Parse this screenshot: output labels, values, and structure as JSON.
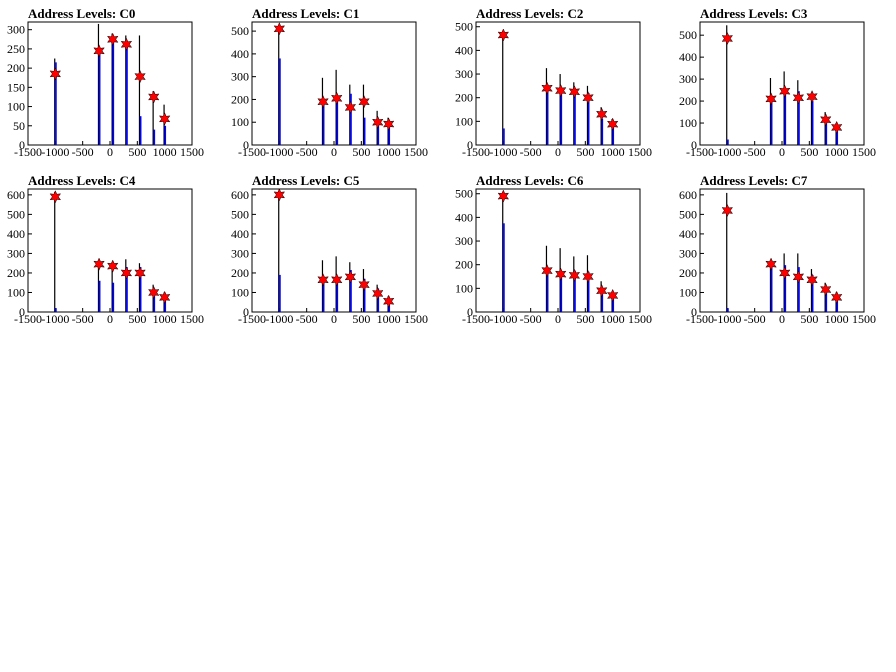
{
  "page": {
    "background": "#ffffff"
  },
  "style": {
    "hist_colors": [
      "#000000",
      "#0000ff"
    ],
    "marker_color": "#ff0000",
    "marker_outline": "#000000",
    "marker_icon": "star-marker-icon"
  },
  "chart_data": [
    {
      "type": "bar",
      "title": "Address Levels: C0",
      "xlim": [
        -1500,
        1500
      ],
      "ylim": [
        0,
        320
      ],
      "yticks": [
        0,
        50,
        100,
        150,
        200,
        250,
        300
      ],
      "xticks": [
        -1500,
        -1000,
        -500,
        0,
        500,
        1000,
        1500
      ],
      "series": [
        {
          "x": [
            -1000,
            -200,
            50,
            300,
            550,
            800,
            1000
          ],
          "values": [
            225,
            315,
            290,
            285,
            285,
            140,
            105
          ]
        },
        {
          "x": [
            -1000,
            -200,
            50,
            300,
            550,
            800,
            1000
          ],
          "values": [
            215,
            250,
            280,
            270,
            75,
            40,
            50
          ]
        }
      ],
      "peaks": {
        "x": [
          -1000,
          -200,
          50,
          300,
          550,
          800,
          1000
        ],
        "values": [
          185,
          245,
          275,
          262,
          178,
          125,
          68
        ]
      }
    },
    {
      "type": "bar",
      "title": "Address Levels: C1",
      "xlim": [
        -1500,
        1500
      ],
      "ylim": [
        0,
        540
      ],
      "yticks": [
        0,
        100,
        200,
        300,
        400,
        500
      ],
      "xticks": [
        -1500,
        -1000,
        -500,
        0,
        500,
        1000,
        1500
      ],
      "series": [
        {
          "x": [
            -1000,
            -200,
            50,
            300,
            550,
            800,
            1000
          ],
          "values": [
            520,
            295,
            330,
            265,
            265,
            150,
            120
          ]
        },
        {
          "x": [
            -1000,
            -200,
            50,
            300,
            550,
            800,
            1000
          ],
          "values": [
            380,
            195,
            215,
            225,
            120,
            100,
            95
          ]
        }
      ],
      "peaks": {
        "x": [
          -1000,
          -200,
          50,
          300,
          550,
          800,
          1000
        ],
        "values": [
          510,
          190,
          205,
          165,
          190,
          100,
          92
        ]
      }
    },
    {
      "type": "bar",
      "title": "Address Levels: C2",
      "xlim": [
        -1500,
        1500
      ],
      "ylim": [
        0,
        520
      ],
      "yticks": [
        0,
        100,
        200,
        300,
        400,
        500
      ],
      "xticks": [
        -1500,
        -1000,
        -500,
        0,
        500,
        1000,
        1500
      ],
      "series": [
        {
          "x": [
            -1000,
            -200,
            50,
            300,
            550,
            800,
            1000
          ],
          "values": [
            470,
            325,
            300,
            265,
            250,
            160,
            110
          ]
        },
        {
          "x": [
            -1000,
            -200,
            50,
            300,
            550,
            800,
            1000
          ],
          "values": [
            70,
            245,
            235,
            235,
            220,
            110,
            95
          ]
        }
      ],
      "peaks": {
        "x": [
          -1000,
          -200,
          50,
          300,
          550,
          800,
          1000
        ],
        "values": [
          465,
          240,
          230,
          225,
          200,
          130,
          88
        ]
      }
    },
    {
      "type": "bar",
      "title": "Address Levels: C3",
      "xlim": [
        -1500,
        1500
      ],
      "ylim": [
        0,
        560
      ],
      "yticks": [
        0,
        100,
        200,
        300,
        400,
        500
      ],
      "xticks": [
        -1500,
        -1000,
        -500,
        0,
        500,
        1000,
        1500
      ],
      "series": [
        {
          "x": [
            -1000,
            -200,
            50,
            300,
            550,
            800,
            1000
          ],
          "values": [
            545,
            305,
            335,
            295,
            225,
            150,
            100
          ]
        },
        {
          "x": [
            -1000,
            -200,
            50,
            300,
            550,
            800,
            1000
          ],
          "values": [
            25,
            215,
            255,
            245,
            200,
            130,
            90
          ]
        }
      ],
      "peaks": {
        "x": [
          -1000,
          -200,
          50,
          300,
          550,
          800,
          1000
        ],
        "values": [
          485,
          210,
          245,
          215,
          220,
          115,
          80
        ]
      }
    },
    {
      "type": "bar",
      "title": "Address Levels: C4",
      "xlim": [
        -1500,
        1500
      ],
      "ylim": [
        0,
        630
      ],
      "yticks": [
        0,
        100,
        200,
        300,
        400,
        500,
        600
      ],
      "xticks": [
        -1500,
        -1000,
        -500,
        0,
        500,
        1000,
        1500
      ],
      "series": [
        {
          "x": [
            -1000,
            -200,
            50,
            300,
            550,
            800,
            1000
          ],
          "values": [
            615,
            235,
            255,
            270,
            250,
            140,
            100
          ]
        },
        {
          "x": [
            -1000,
            -200,
            50,
            300,
            550,
            800,
            1000
          ],
          "values": [
            20,
            160,
            150,
            230,
            230,
            120,
            90
          ]
        }
      ],
      "peaks": {
        "x": [
          -1000,
          -200,
          50,
          300,
          550,
          800,
          1000
        ],
        "values": [
          590,
          245,
          235,
          200,
          200,
          100,
          75
        ]
      }
    },
    {
      "type": "bar",
      "title": "Address Levels: C5",
      "xlim": [
        -1500,
        1500
      ],
      "ylim": [
        0,
        630
      ],
      "yticks": [
        0,
        100,
        200,
        300,
        400,
        500,
        600
      ],
      "xticks": [
        -1500,
        -1000,
        -500,
        0,
        500,
        1000,
        1500
      ],
      "series": [
        {
          "x": [
            -1000,
            -200,
            50,
            300,
            550,
            800,
            1000
          ],
          "values": [
            620,
            265,
            285,
            255,
            220,
            140,
            80
          ]
        },
        {
          "x": [
            -1000,
            -200,
            50,
            300,
            550,
            800,
            1000
          ],
          "values": [
            190,
            185,
            185,
            215,
            170,
            120,
            70
          ]
        }
      ],
      "peaks": {
        "x": [
          -1000,
          -200,
          50,
          300,
          550,
          800,
          1000
        ],
        "values": [
          600,
          165,
          165,
          180,
          140,
          95,
          55
        ]
      }
    },
    {
      "type": "bar",
      "title": "Address Levels: C6",
      "xlim": [
        -1500,
        1500
      ],
      "ylim": [
        0,
        520
      ],
      "yticks": [
        0,
        100,
        200,
        300,
        400,
        500
      ],
      "xticks": [
        -1500,
        -1000,
        -500,
        0,
        500,
        1000,
        1500
      ],
      "series": [
        {
          "x": [
            -1000,
            -200,
            50,
            300,
            550,
            800,
            1000
          ],
          "values": [
            500,
            280,
            270,
            235,
            240,
            130,
            80
          ]
        },
        {
          "x": [
            -1000,
            -200,
            50,
            300,
            550,
            800,
            1000
          ],
          "values": [
            375,
            165,
            165,
            175,
            170,
            100,
            70
          ]
        }
      ],
      "peaks": {
        "x": [
          -1000,
          -200,
          50,
          300,
          550,
          800,
          1000
        ],
        "values": [
          490,
          175,
          160,
          155,
          150,
          90,
          70
        ]
      }
    },
    {
      "type": "bar",
      "title": "Address Levels: C7",
      "xlim": [
        -1500,
        1500
      ],
      "ylim": [
        0,
        630
      ],
      "yticks": [
        0,
        100,
        200,
        300,
        400,
        500,
        600
      ],
      "xticks": [
        -1500,
        -1000,
        -500,
        0,
        500,
        1000,
        1500
      ],
      "series": [
        {
          "x": [
            -1000,
            -200,
            50,
            300,
            550,
            800,
            1000
          ],
          "values": [
            610,
            250,
            300,
            300,
            220,
            150,
            100
          ]
        },
        {
          "x": [
            -1000,
            -200,
            50,
            300,
            550,
            800,
            1000
          ],
          "values": [
            20,
            235,
            240,
            230,
            190,
            130,
            85
          ]
        }
      ],
      "peaks": {
        "x": [
          -1000,
          -200,
          50,
          300,
          550,
          800,
          1000
        ],
        "values": [
          520,
          245,
          200,
          180,
          165,
          115,
          75
        ]
      }
    }
  ]
}
